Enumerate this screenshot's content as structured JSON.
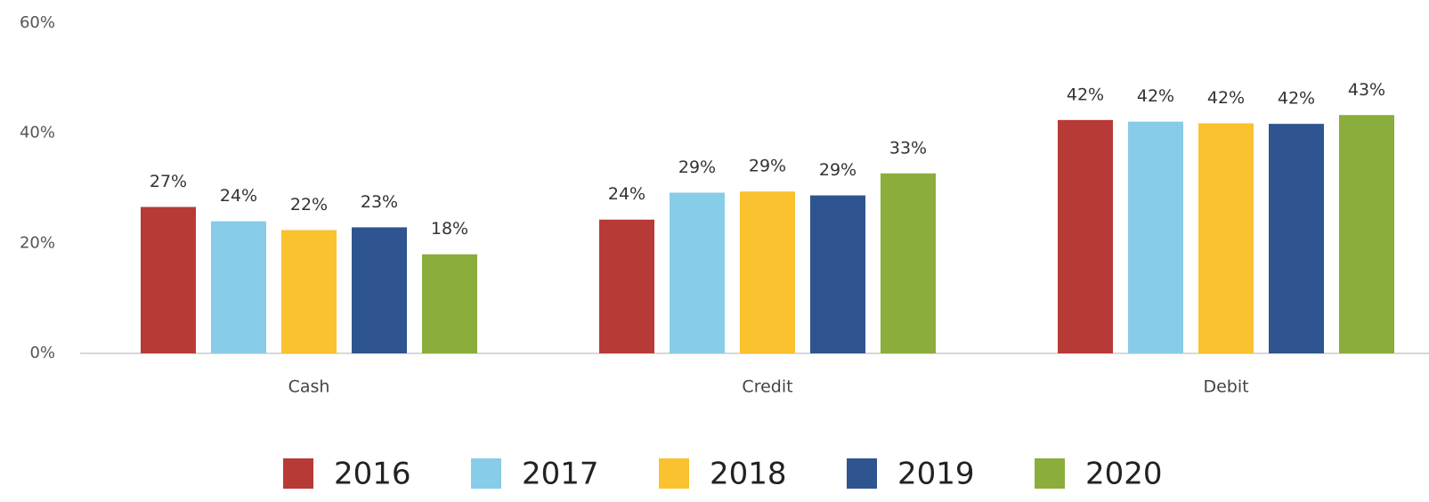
{
  "chart_data": {
    "type": "bar",
    "categories": [
      "Cash",
      "Credit",
      "Debit"
    ],
    "series": [
      {
        "name": "2016",
        "color": "#b83a36",
        "values": [
          26.6,
          24.3,
          42.4
        ],
        "value_labels": [
          "27%",
          "24%",
          "42%"
        ]
      },
      {
        "name": "2017",
        "color": "#87cce8",
        "values": [
          24.0,
          29.2,
          42.1
        ],
        "value_labels": [
          "24%",
          "29%",
          "42%"
        ]
      },
      {
        "name": "2018",
        "color": "#f9c22e",
        "values": [
          22.4,
          29.4,
          41.8
        ],
        "value_labels": [
          "22%",
          "29%",
          "42%"
        ]
      },
      {
        "name": "2019",
        "color": "#2e5590",
        "values": [
          22.9,
          28.7,
          41.7
        ],
        "value_labels": [
          "23%",
          "29%",
          "42%"
        ]
      },
      {
        "name": "2020",
        "color": "#8aad3b",
        "values": [
          18.0,
          32.7,
          43.3
        ],
        "value_labels": [
          "18%",
          "33%",
          "43%"
        ]
      }
    ],
    "ylim": [
      0,
      60
    ],
    "yticks": [
      {
        "value": 0,
        "label": "0%"
      },
      {
        "value": 20,
        "label": "20%"
      },
      {
        "value": 40,
        "label": "40%"
      },
      {
        "value": 60,
        "label": "60%"
      }
    ],
    "grid": false,
    "legend": "bottom"
  }
}
